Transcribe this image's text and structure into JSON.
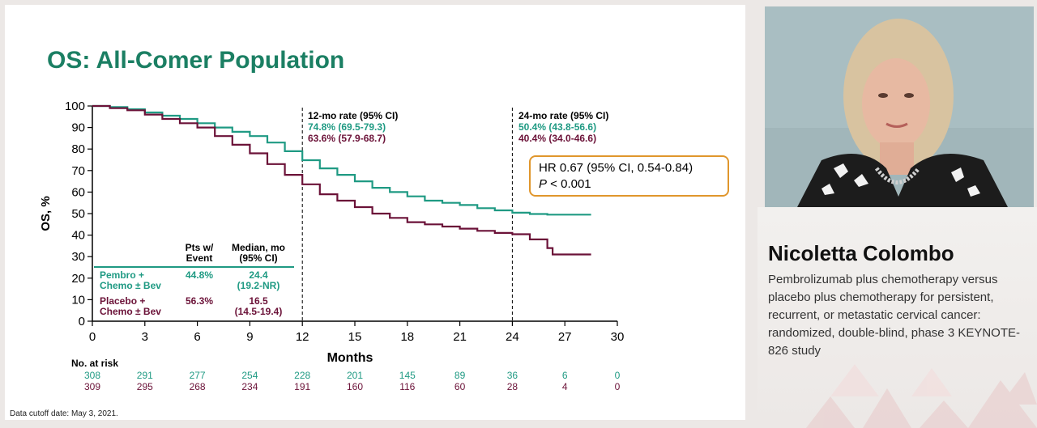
{
  "slide": {
    "title": "OS: All-Comer Population",
    "footnote": "Data cutoff date: May 3, 2021."
  },
  "speaker": {
    "name": "Nicoletta Colombo",
    "talk_title": "Pembrolizumab plus chemotherapy versus placebo plus chemotherapy for persistent, recurrent, or metastatic cervical cancer: randomized, double-blind, phase 3 KEYNOTE-826 study"
  },
  "chart_data": {
    "type": "line",
    "xlabel": "Months",
    "ylabel": "OS, %",
    "xlim": [
      0,
      30
    ],
    "ylim": [
      0,
      100
    ],
    "xticks": [
      0,
      3,
      6,
      9,
      12,
      15,
      18,
      21,
      24,
      27,
      30
    ],
    "yticks": [
      0,
      10,
      20,
      30,
      40,
      50,
      60,
      70,
      80,
      90,
      100
    ],
    "colors": {
      "pembro": "#1f9a83",
      "placebo": "#6b1238",
      "box": "#e0962c"
    },
    "series": [
      {
        "name": "Pembro + Chemo ± Bev",
        "color": "#1f9a83",
        "points": [
          [
            0,
            100
          ],
          [
            1,
            99.5
          ],
          [
            2,
            98.5
          ],
          [
            3,
            97
          ],
          [
            4,
            95.5
          ],
          [
            5,
            94
          ],
          [
            6,
            92
          ],
          [
            7,
            90
          ],
          [
            8,
            88
          ],
          [
            9,
            86
          ],
          [
            10,
            83
          ],
          [
            11,
            79
          ],
          [
            12,
            74.8
          ],
          [
            13,
            71
          ],
          [
            14,
            68
          ],
          [
            15,
            65
          ],
          [
            16,
            62
          ],
          [
            17,
            60
          ],
          [
            18,
            58
          ],
          [
            19,
            56
          ],
          [
            20,
            55
          ],
          [
            21,
            54
          ],
          [
            22,
            52.5
          ],
          [
            23,
            51.5
          ],
          [
            24,
            50.4
          ],
          [
            25,
            49.8
          ],
          [
            26,
            49.5
          ],
          [
            27,
            49.5
          ],
          [
            28,
            49.5
          ],
          [
            28.5,
            49.5
          ]
        ]
      },
      {
        "name": "Placebo + Chemo ± Bev",
        "color": "#6b1238",
        "points": [
          [
            0,
            100
          ],
          [
            1,
            99
          ],
          [
            2,
            98
          ],
          [
            3,
            96
          ],
          [
            4,
            94
          ],
          [
            5,
            92
          ],
          [
            6,
            90
          ],
          [
            7,
            86
          ],
          [
            8,
            82
          ],
          [
            9,
            78
          ],
          [
            10,
            73
          ],
          [
            11,
            68
          ],
          [
            12,
            63.6
          ],
          [
            13,
            59
          ],
          [
            14,
            56
          ],
          [
            15,
            53
          ],
          [
            16,
            50
          ],
          [
            17,
            48
          ],
          [
            18,
            46
          ],
          [
            19,
            45
          ],
          [
            20,
            44
          ],
          [
            21,
            43
          ],
          [
            22,
            42
          ],
          [
            23,
            41
          ],
          [
            24,
            40.4
          ],
          [
            25,
            38
          ],
          [
            26,
            34
          ],
          [
            26.3,
            31
          ],
          [
            27,
            31
          ],
          [
            28.5,
            31
          ]
        ]
      }
    ],
    "rate_12mo": {
      "header": "12-mo rate (95% CI)",
      "pembro": "74.8% (69.5-79.3)",
      "placebo": "63.6% (57.9-68.7)"
    },
    "rate_24mo": {
      "header": "24-mo rate (95% CI)",
      "pembro": "50.4% (43.8-56.6)",
      "placebo": "40.4% (34.0-46.6)"
    },
    "hr": {
      "line1": "HR 0.67 (95% CI, 0.54-0.84)",
      "line2_p": "P",
      "line2_rest": " < 0.001"
    },
    "table": {
      "col1": [
        "Pts w/",
        "Event"
      ],
      "col2": [
        "Median, mo",
        "(95% CI)"
      ],
      "rows": [
        {
          "arm": [
            "Pembro +",
            "Chemo ± Bev"
          ],
          "event": "44.8%",
          "median": [
            "24.4",
            "(19.2-NR)"
          ]
        },
        {
          "arm": [
            "Placebo +",
            "Chemo ± Bev"
          ],
          "event": "56.3%",
          "median": [
            "16.5",
            "(14.5-19.4)"
          ]
        }
      ]
    },
    "at_risk": {
      "label": "No. at risk",
      "pembro": [
        "308",
        "291",
        "277",
        "254",
        "228",
        "201",
        "145",
        "89",
        "36",
        "6",
        "0"
      ],
      "placebo": [
        "309",
        "295",
        "268",
        "234",
        "191",
        "160",
        "116",
        "60",
        "28",
        "4",
        "0"
      ]
    }
  }
}
